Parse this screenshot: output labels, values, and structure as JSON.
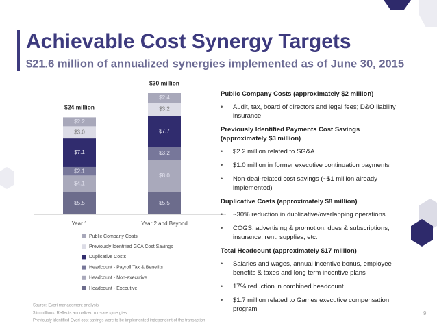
{
  "header": {
    "title": "Achievable Cost Synergy Targets",
    "subtitle": "$21.6 million of annualized synergies implemented as of June 30, 2015"
  },
  "chart_data": {
    "type": "stacked_bar",
    "categories": [
      "Year 1",
      "Year 2 and Beyond"
    ],
    "annotations": [
      "$24 million",
      "$30 million"
    ],
    "series": [
      {
        "name": "Headcount - Executive",
        "color": "#6c6c8c",
        "values": [
          5.5,
          5.5
        ],
        "value_labels": [
          "$5.5",
          "$5.5"
        ]
      },
      {
        "name": "Headcount - Non-executive",
        "color": "#a9a9bb",
        "values": [
          4.1,
          8.0
        ],
        "value_labels": [
          "$4.1",
          "$8.0"
        ]
      },
      {
        "name": "Headcount - Payroll Tax & Benefits",
        "color": "#77779a",
        "values": [
          2.1,
          3.2
        ],
        "value_labels": [
          "$2.1",
          "$3.2"
        ]
      },
      {
        "name": "Duplicative Costs",
        "color": "#302c6e",
        "values": [
          7.1,
          7.7
        ],
        "value_labels": [
          "$7.1",
          "$7.7"
        ]
      },
      {
        "name": "Previously Identified GCA Cost Savings",
        "color": "#dcdce6",
        "values": [
          3.0,
          3.2
        ],
        "value_labels": [
          "$3.0",
          "$3.2"
        ]
      },
      {
        "name": "Public Company Costs",
        "color": "#a8a8ba",
        "values": [
          2.2,
          2.4
        ],
        "value_labels": [
          "$2.2",
          "$2.4"
        ]
      }
    ]
  },
  "sections": [
    {
      "heading": "Public Company Costs (approximately $2 million)",
      "bullets": [
        "Audit, tax, board of directors and legal fees; D&O liability insurance"
      ]
    },
    {
      "heading": "Previously Identified Payments Cost Savings (approximately $3 million)",
      "bullets": [
        "$2.2 million related to SG&A",
        "$1.0 million in former executive continuation payments",
        "Non-deal-related cost savings (~$1 million already implemented)"
      ]
    },
    {
      "heading": "Duplicative Costs (approximately $8 million)",
      "bullets": [
        "~30% reduction in duplicative/overlapping operations",
        "COGS, advertising & promotion, dues & subscriptions, insurance, rent, supplies, etc."
      ]
    },
    {
      "heading": "Total Headcount (approximately $17 million)",
      "bullets": [
        "Salaries and wages, annual incentive bonus, employee benefits & taxes and long term incentive plans",
        "17% reduction in combined headcount",
        "$1.7 million related to Games executive compensation program"
      ]
    }
  ],
  "footnotes": [
    "Source: Everi management analysis",
    "$ in millions. Reflects annualized run-rate synergies",
    "Previously identified Everi cost savings were to be implemented independent of the transaction"
  ],
  "page_number": 9
}
